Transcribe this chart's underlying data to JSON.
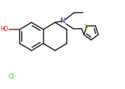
{
  "bg_color": "#ffffff",
  "bond_color": "#1a1a1a",
  "oh_color": "#cc0000",
  "n_color": "#2222cc",
  "s_color": "#b8b800",
  "cl_color": "#22cc22",
  "lw": 1.1
}
